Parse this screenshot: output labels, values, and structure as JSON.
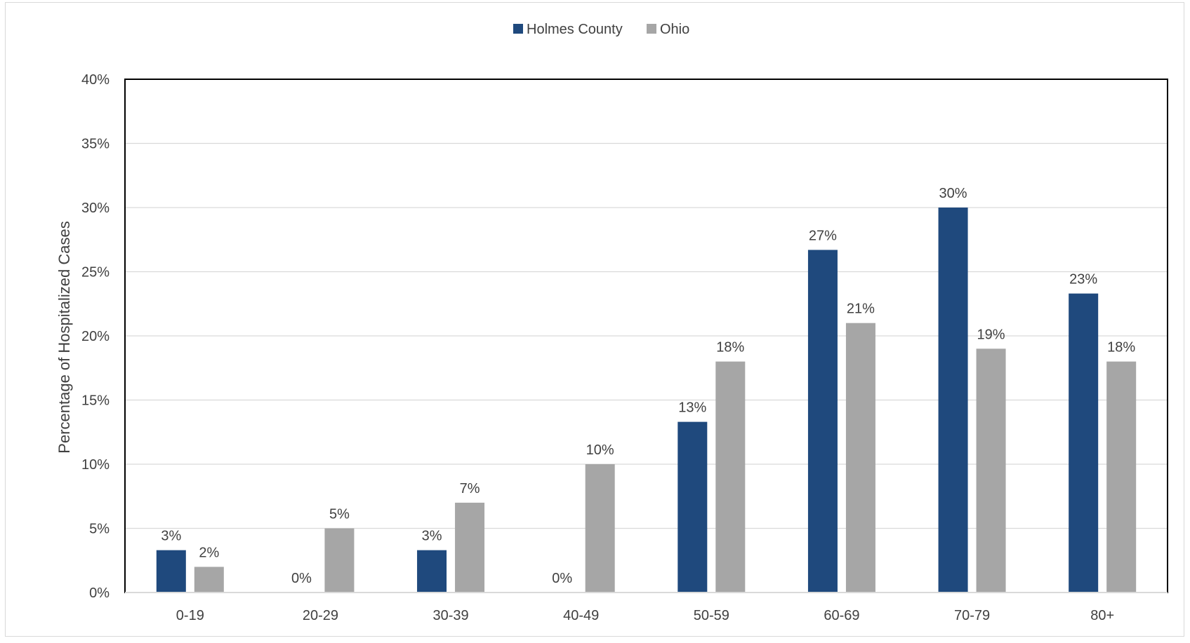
{
  "chart_data": {
    "type": "bar",
    "categories": [
      "0-19",
      "20-29",
      "30-39",
      "40-49",
      "50-59",
      "60-69",
      "70-79",
      "80+"
    ],
    "series": [
      {
        "name": "Holmes County",
        "color": "#1f497d",
        "values": [
          3.3,
          0,
          3.3,
          0,
          13.3,
          26.7,
          30,
          23.3
        ],
        "labels": [
          "3%",
          "0%",
          "3%",
          "0%",
          "13%",
          "27%",
          "30%",
          "23%"
        ]
      },
      {
        "name": "Ohio",
        "color": "#a6a6a6",
        "values": [
          2,
          5,
          7,
          10,
          18,
          21,
          19,
          18
        ],
        "labels": [
          "2%",
          "5%",
          "7%",
          "10%",
          "18%",
          "21%",
          "19%",
          "18%"
        ]
      }
    ],
    "ylabel": "Percentage of Hospitalized Cases",
    "xlabel": "",
    "ylim": [
      0,
      40
    ],
    "yticks": [
      0,
      5,
      10,
      15,
      20,
      25,
      30,
      35,
      40
    ],
    "ytick_labels": [
      "0%",
      "5%",
      "10%",
      "15%",
      "20%",
      "25%",
      "30%",
      "35%",
      "40%"
    ],
    "grid": true,
    "legend_position": "top-center"
  }
}
